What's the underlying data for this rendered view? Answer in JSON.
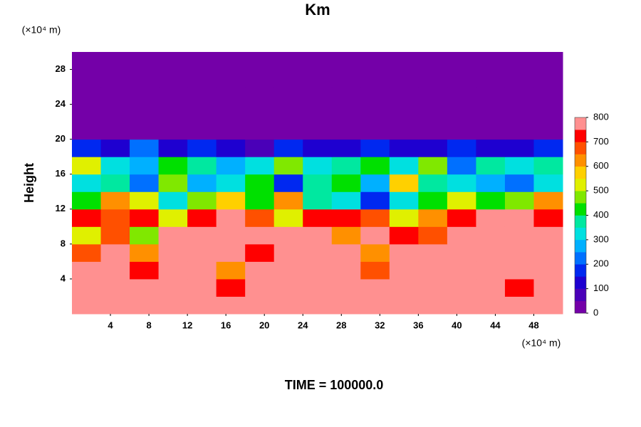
{
  "chart_data": {
    "type": "heatmap",
    "title": "Km",
    "y_label": "Height",
    "y_unit": "(×10⁴ m)",
    "x_unit": "(×10⁴ m)",
    "footer": "TIME = 100000.0",
    "xlim": [
      0,
      51
    ],
    "ylim": [
      0,
      30
    ],
    "xticks": [
      4,
      8,
      12,
      16,
      20,
      24,
      28,
      32,
      36,
      40,
      44,
      48
    ],
    "yticks": [
      4,
      8,
      12,
      16,
      20,
      24,
      28
    ],
    "x_edges": [
      0,
      3,
      6,
      9,
      12,
      15,
      18,
      21,
      24,
      27,
      30,
      33,
      36,
      39,
      42,
      45,
      48,
      51
    ],
    "y_edges": [
      0,
      2,
      4,
      6,
      8,
      10,
      12,
      14,
      16,
      18,
      20,
      22,
      24,
      26,
      28,
      30
    ],
    "values": [
      [
        800,
        800,
        800,
        800,
        800,
        800,
        800,
        800,
        800,
        800,
        800,
        800,
        800,
        800,
        800,
        800,
        800
      ],
      [
        800,
        800,
        800,
        800,
        800,
        700,
        800,
        800,
        800,
        800,
        800,
        800,
        800,
        800,
        800,
        700,
        800
      ],
      [
        800,
        800,
        700,
        800,
        800,
        600,
        800,
        800,
        800,
        800,
        650,
        800,
        800,
        800,
        800,
        800,
        800
      ],
      [
        650,
        800,
        600,
        800,
        800,
        800,
        700,
        800,
        800,
        800,
        600,
        800,
        800,
        800,
        800,
        800,
        800
      ],
      [
        500,
        650,
        450,
        800,
        800,
        800,
        800,
        800,
        800,
        600,
        800,
        700,
        650,
        800,
        800,
        800,
        800
      ],
      [
        700,
        650,
        700,
        500,
        700,
        800,
        650,
        500,
        700,
        700,
        650,
        500,
        600,
        700,
        800,
        800,
        700
      ],
      [
        400,
        600,
        500,
        300,
        450,
        550,
        400,
        600,
        350,
        300,
        150,
        300,
        400,
        500,
        400,
        450,
        600
      ],
      [
        300,
        350,
        200,
        450,
        250,
        300,
        400,
        150,
        350,
        400,
        250,
        550,
        350,
        300,
        250,
        200,
        300
      ],
      [
        500,
        300,
        250,
        400,
        350,
        250,
        300,
        450,
        300,
        350,
        400,
        300,
        450,
        200,
        350,
        300,
        350
      ],
      [
        150,
        100,
        200,
        100,
        150,
        100,
        50,
        150,
        100,
        100,
        150,
        100,
        100,
        150,
        100,
        100,
        150
      ],
      [
        0,
        0,
        0,
        0,
        0,
        0,
        0,
        0,
        0,
        0,
        0,
        0,
        0,
        0,
        0,
        0,
        0
      ],
      [
        0,
        0,
        0,
        0,
        0,
        0,
        0,
        0,
        0,
        0,
        0,
        0,
        0,
        0,
        0,
        0,
        0
      ],
      [
        0,
        0,
        0,
        0,
        0,
        0,
        0,
        0,
        0,
        0,
        0,
        0,
        0,
        0,
        0,
        0,
        0
      ],
      [
        0,
        0,
        0,
        0,
        0,
        0,
        0,
        0,
        0,
        0,
        0,
        0,
        0,
        0,
        0,
        0,
        0
      ],
      [
        0,
        0,
        0,
        0,
        0,
        0,
        0,
        0,
        0,
        0,
        0,
        0,
        0,
        0,
        0,
        0,
        0
      ]
    ],
    "colorbar": {
      "lim": [
        0,
        800
      ],
      "ticks": [
        0,
        100,
        200,
        300,
        400,
        500,
        600,
        700,
        800
      ],
      "colors": [
        "#7400a8",
        "#4a00b8",
        "#1e00d0",
        "#0028f0",
        "#0070ff",
        "#00b0ff",
        "#00e0e0",
        "#00e8a0",
        "#00e000",
        "#80e800",
        "#e0f000",
        "#ffd000",
        "#ff9000",
        "#ff5000",
        "#ff0000",
        "#ff9090"
      ]
    }
  }
}
